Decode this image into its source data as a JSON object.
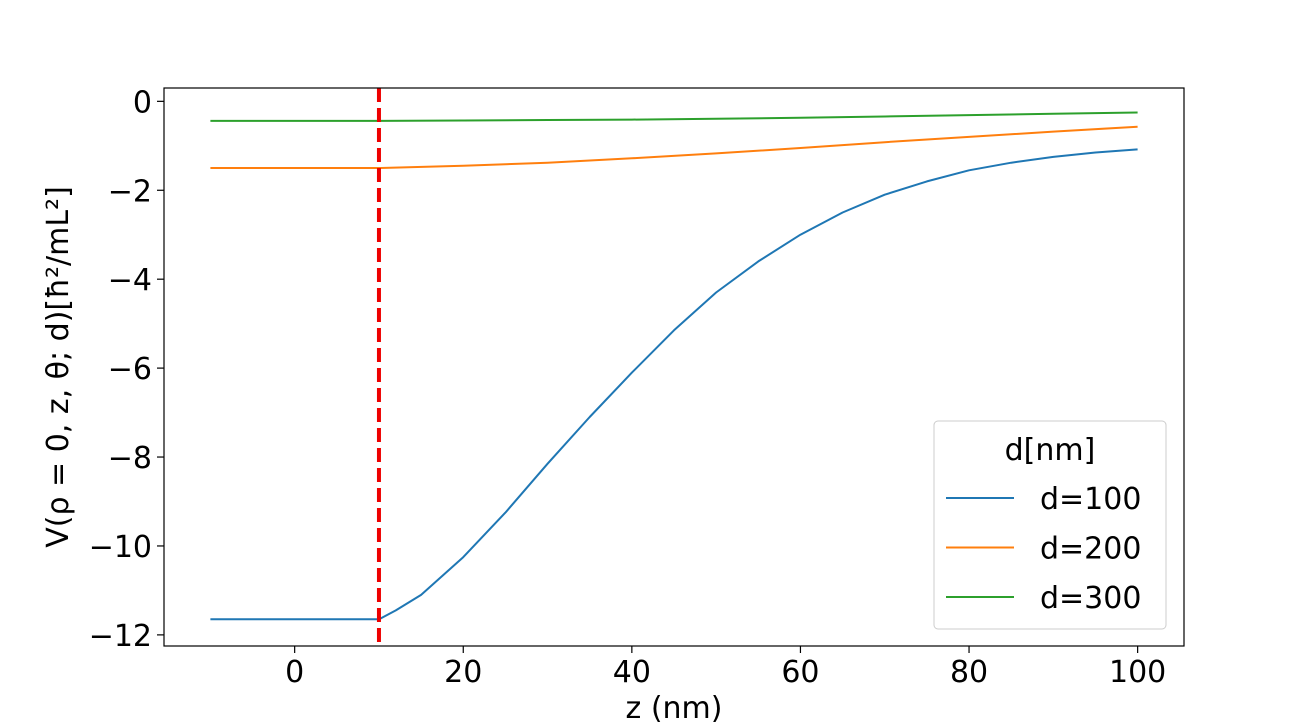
{
  "chart_data": {
    "type": "line",
    "xlabel": "z (nm)",
    "ylabel": "V(ρ = 0, z, θ; d)[ħ²/mL²]",
    "xlim": [
      -15.5,
      105.5
    ],
    "ylim": [
      -12.25,
      0.3
    ],
    "xticks": [
      0,
      20,
      40,
      60,
      80,
      100
    ],
    "yticks": [
      0,
      -2,
      -4,
      -6,
      -8,
      -10,
      -12
    ],
    "xtick_labels": [
      "0",
      "20",
      "40",
      "60",
      "80",
      "100"
    ],
    "ytick_labels": [
      "0",
      "−2",
      "−4",
      "−6",
      "−8",
      "−10",
      "−12"
    ],
    "vline": {
      "x": 10,
      "color": "#ee0000",
      "style": "dashed"
    },
    "legend": {
      "title": "d[nm]",
      "placement": "lower right"
    },
    "series": [
      {
        "name": "d=100",
        "color": "#1f77b4",
        "x": [
          -10,
          0,
          10,
          12,
          15,
          20,
          25,
          30,
          35,
          40,
          45,
          50,
          55,
          60,
          65,
          70,
          75,
          80,
          85,
          90,
          95,
          100
        ],
        "y": [
          -11.65,
          -11.65,
          -11.65,
          -11.45,
          -11.1,
          -10.25,
          -9.25,
          -8.15,
          -7.1,
          -6.1,
          -5.15,
          -4.3,
          -3.6,
          -3.0,
          -2.5,
          -2.1,
          -1.8,
          -1.55,
          -1.38,
          -1.25,
          -1.15,
          -1.08
        ]
      },
      {
        "name": "d=200",
        "color": "#ff7f0e",
        "x": [
          -10,
          0,
          10,
          20,
          30,
          40,
          50,
          60,
          70,
          80,
          90,
          100
        ],
        "y": [
          -1.5,
          -1.5,
          -1.5,
          -1.45,
          -1.38,
          -1.28,
          -1.17,
          -1.05,
          -0.92,
          -0.8,
          -0.68,
          -0.57
        ]
      },
      {
        "name": "d=300",
        "color": "#2ca02c",
        "x": [
          -10,
          0,
          10,
          20,
          30,
          40,
          50,
          60,
          70,
          80,
          90,
          100
        ],
        "y": [
          -0.44,
          -0.44,
          -0.44,
          -0.43,
          -0.42,
          -0.41,
          -0.39,
          -0.37,
          -0.34,
          -0.31,
          -0.28,
          -0.25
        ]
      }
    ]
  }
}
